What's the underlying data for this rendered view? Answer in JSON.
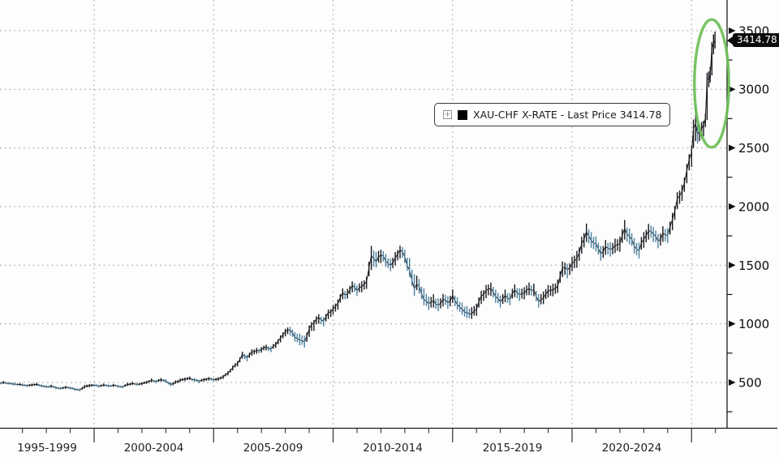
{
  "window": {
    "background": "#fdfdfd"
  },
  "legend": {
    "expand_icon": "plus-box-icon",
    "expand_glyph": "+",
    "swatch_color": "#000000",
    "label": "XAU-CHF X-RATE - Last Price 3414.78"
  },
  "last_price_callout": {
    "text": "3414.78",
    "bg": "#0c0c0c",
    "fg": "#ffffff"
  },
  "chart_data": {
    "type": "bar",
    "subtype": "ohlc-price-bars",
    "title": "XAU-CHF X-RATE - Last Price 3414.78",
    "series_name": "XAU-CHF X-RATE",
    "last_price": 3414.78,
    "xlabel": "",
    "ylabel": "",
    "grid": true,
    "legend_position": "floating-center-top",
    "ylim": [
      250,
      3600
    ],
    "x_range_years": [
      1996,
      2026.3
    ],
    "y_ticks": [
      500,
      1000,
      1500,
      2000,
      2500,
      3000,
      3500
    ],
    "y_minor_step": 250,
    "x_period_labels": [
      "1995-1999",
      "2000-2004",
      "2005-2009",
      "2010-2014",
      "2015-2019",
      "2020-2024"
    ],
    "x_divider_years": [
      2000,
      2005,
      2010,
      2015,
      2020,
      2025
    ],
    "colors": {
      "bar_up": "#17191e",
      "bar_down": "#4e81a0",
      "line": "#1a1d21",
      "grid": "#9a9a9a",
      "axis": "#1c1c1c",
      "tick_label": "#0d0d0d",
      "period_label": "#222222",
      "annotation": "#6cbf57"
    },
    "annotation_ellipse": {
      "center_year": 2025.84,
      "center_value": 3050,
      "radius_years": 0.72,
      "radius_value": 545,
      "stroke_width": 3.4
    },
    "bars": [
      [
        1996.0,
        482,
        506,
        495
      ],
      [
        1996.2,
        488,
        512,
        500
      ],
      [
        1996.4,
        480,
        504,
        492
      ],
      [
        1996.6,
        474,
        498,
        486
      ],
      [
        1996.8,
        470,
        494,
        482
      ],
      [
        1997.0,
        466,
        490,
        478
      ],
      [
        1997.2,
        460,
        484,
        472
      ],
      [
        1997.4,
        467,
        491,
        479
      ],
      [
        1997.6,
        472,
        496,
        484
      ],
      [
        1997.8,
        459,
        483,
        471
      ],
      [
        1998.0,
        452,
        476,
        464
      ],
      [
        1998.2,
        456,
        480,
        468
      ],
      [
        1998.4,
        443,
        467,
        455
      ],
      [
        1998.6,
        437,
        461,
        449
      ],
      [
        1998.8,
        446,
        470,
        458
      ],
      [
        1999.0,
        440,
        464,
        452
      ],
      [
        1999.2,
        429,
        453,
        441
      ],
      [
        1999.4,
        424,
        448,
        436
      ],
      [
        1999.6,
        448,
        478,
        463
      ],
      [
        1999.8,
        458,
        486,
        472
      ],
      [
        2000.0,
        464,
        488,
        476
      ],
      [
        2000.2,
        456,
        480,
        468
      ],
      [
        2000.4,
        467,
        491,
        479
      ],
      [
        2000.6,
        459,
        483,
        471
      ],
      [
        2000.8,
        463,
        487,
        475
      ],
      [
        2001.0,
        455,
        479,
        467
      ],
      [
        2001.2,
        450,
        474,
        462
      ],
      [
        2001.4,
        469,
        497,
        483
      ],
      [
        2001.6,
        478,
        506,
        492
      ],
      [
        2001.8,
        471,
        495,
        483
      ],
      [
        2002.0,
        477,
        501,
        489
      ],
      [
        2002.2,
        487,
        515,
        501
      ],
      [
        2002.4,
        503,
        533,
        519
      ],
      [
        2002.6,
        493,
        521,
        507
      ],
      [
        2002.8,
        507,
        537,
        523
      ],
      [
        2003.0,
        497,
        527,
        513
      ],
      [
        2003.2,
        468,
        500,
        484
      ],
      [
        2003.4,
        487,
        517,
        503
      ],
      [
        2003.6,
        503,
        533,
        519
      ],
      [
        2003.8,
        511,
        541,
        527
      ],
      [
        2004.0,
        521,
        551,
        537
      ],
      [
        2004.2,
        506,
        536,
        522
      ],
      [
        2004.4,
        493,
        523,
        509
      ],
      [
        2004.6,
        508,
        538,
        524
      ],
      [
        2004.8,
        516,
        546,
        532
      ],
      [
        2005.0,
        507,
        537,
        523
      ],
      [
        2005.2,
        514,
        544,
        530
      ],
      [
        2005.4,
        530,
        562,
        548
      ],
      [
        2005.6,
        560,
        596,
        580
      ],
      [
        2005.8,
        602,
        644,
        625
      ],
      [
        2006.0,
        636,
        682,
        662
      ],
      [
        2006.2,
        702,
        762,
        738
      ],
      [
        2006.4,
        680,
        736,
        712
      ],
      [
        2006.6,
        728,
        782,
        760
      ],
      [
        2006.8,
        744,
        794,
        772
      ],
      [
        2007.0,
        754,
        802,
        780
      ],
      [
        2007.2,
        772,
        822,
        802
      ],
      [
        2007.4,
        758,
        808,
        784
      ],
      [
        2007.6,
        794,
        846,
        824
      ],
      [
        2007.8,
        842,
        902,
        880
      ],
      [
        2008.0,
        892,
        958,
        934
      ],
      [
        2008.2,
        900,
        976,
        946
      ],
      [
        2008.4,
        848,
        930,
        886
      ],
      [
        2008.6,
        816,
        918,
        860
      ],
      [
        2008.8,
        798,
        898,
        844
      ],
      [
        2009.0,
        888,
        986,
        958
      ],
      [
        2009.2,
        940,
        1032,
        1006
      ],
      [
        2009.4,
        1000,
        1082,
        1052
      ],
      [
        2009.6,
        978,
        1056,
        1022
      ],
      [
        2009.8,
        1040,
        1122,
        1096
      ],
      [
        2010.0,
        1078,
        1162,
        1128
      ],
      [
        2010.2,
        1120,
        1206,
        1176
      ],
      [
        2010.4,
        1208,
        1302,
        1264
      ],
      [
        2010.6,
        1214,
        1298,
        1252
      ],
      [
        2010.8,
        1268,
        1362,
        1326
      ],
      [
        2011.0,
        1238,
        1330,
        1282
      ],
      [
        2011.2,
        1268,
        1362,
        1318
      ],
      [
        2011.4,
        1298,
        1402,
        1360
      ],
      [
        2011.6,
        1458,
        1665,
        1580
      ],
      [
        2011.8,
        1478,
        1612,
        1528
      ],
      [
        2012.0,
        1518,
        1632,
        1586
      ],
      [
        2012.2,
        1488,
        1596,
        1536
      ],
      [
        2012.4,
        1448,
        1556,
        1500
      ],
      [
        2012.6,
        1498,
        1612,
        1562
      ],
      [
        2012.8,
        1558,
        1666,
        1630
      ],
      [
        2013.0,
        1518,
        1632,
        1572
      ],
      [
        2013.2,
        1398,
        1562,
        1456
      ],
      [
        2013.4,
        1238,
        1422,
        1298
      ],
      [
        2013.6,
        1258,
        1382,
        1322
      ],
      [
        2013.8,
        1158,
        1302,
        1206
      ],
      [
        2014.0,
        1118,
        1232,
        1172
      ],
      [
        2014.2,
        1138,
        1252,
        1198
      ],
      [
        2014.4,
        1108,
        1216,
        1158
      ],
      [
        2014.6,
        1148,
        1256,
        1206
      ],
      [
        2014.8,
        1128,
        1236,
        1178
      ],
      [
        2015.0,
        1178,
        1292,
        1242
      ],
      [
        2015.2,
        1118,
        1226,
        1166
      ],
      [
        2015.4,
        1078,
        1182,
        1126
      ],
      [
        2015.6,
        1048,
        1152,
        1096
      ],
      [
        2015.8,
        1042,
        1142,
        1086
      ],
      [
        2016.0,
        1068,
        1172,
        1122
      ],
      [
        2016.2,
        1168,
        1282,
        1238
      ],
      [
        2016.4,
        1218,
        1332,
        1286
      ],
      [
        2016.6,
        1238,
        1352,
        1302
      ],
      [
        2016.8,
        1178,
        1292,
        1232
      ],
      [
        2017.0,
        1138,
        1242,
        1188
      ],
      [
        2017.2,
        1184,
        1292,
        1242
      ],
      [
        2017.4,
        1158,
        1262,
        1208
      ],
      [
        2017.6,
        1228,
        1336,
        1288
      ],
      [
        2017.8,
        1194,
        1302,
        1248
      ],
      [
        2018.0,
        1208,
        1312,
        1262
      ],
      [
        2018.2,
        1244,
        1352,
        1300
      ],
      [
        2018.4,
        1234,
        1342,
        1288
      ],
      [
        2018.6,
        1138,
        1252,
        1188
      ],
      [
        2018.8,
        1168,
        1276,
        1222
      ],
      [
        2019.0,
        1224,
        1332,
        1280
      ],
      [
        2019.2,
        1234,
        1342,
        1290
      ],
      [
        2019.4,
        1264,
        1378,
        1322
      ],
      [
        2019.6,
        1398,
        1532,
        1478
      ],
      [
        2019.8,
        1388,
        1512,
        1462
      ],
      [
        2020.0,
        1448,
        1572,
        1515
      ],
      [
        2020.2,
        1478,
        1622,
        1558
      ],
      [
        2020.4,
        1598,
        1742,
        1682
      ],
      [
        2020.6,
        1698,
        1855,
        1785
      ],
      [
        2020.8,
        1648,
        1782,
        1712
      ],
      [
        2021.0,
        1618,
        1746,
        1682
      ],
      [
        2021.2,
        1538,
        1662,
        1598
      ],
      [
        2021.4,
        1588,
        1716,
        1658
      ],
      [
        2021.6,
        1574,
        1696,
        1635
      ],
      [
        2021.8,
        1604,
        1726,
        1668
      ],
      [
        2022.0,
        1614,
        1742,
        1682
      ],
      [
        2022.2,
        1718,
        1886,
        1812
      ],
      [
        2022.4,
        1678,
        1812,
        1748
      ],
      [
        2022.6,
        1598,
        1732,
        1665
      ],
      [
        2022.8,
        1558,
        1692,
        1622
      ],
      [
        2023.0,
        1648,
        1782,
        1722
      ],
      [
        2023.2,
        1718,
        1852,
        1792
      ],
      [
        2023.4,
        1698,
        1826,
        1765
      ],
      [
        2023.6,
        1644,
        1766,
        1705
      ],
      [
        2023.8,
        1698,
        1832,
        1772
      ],
      [
        2024.0,
        1688,
        1816,
        1755
      ],
      [
        2024.2,
        1798,
        1946,
        1892
      ],
      [
        2024.4,
        1978,
        2122,
        2068
      ],
      [
        2024.6,
        2048,
        2186,
        2128
      ],
      [
        2024.8,
        2198,
        2362,
        2308
      ],
      [
        2025.0,
        2338,
        2522,
        2462
      ],
      [
        2025.08,
        2498,
        2742,
        2668
      ],
      [
        2025.17,
        2558,
        2863,
        2705
      ],
      [
        2025.25,
        2538,
        2722,
        2615
      ],
      [
        2025.33,
        2558,
        2702,
        2648
      ],
      [
        2025.42,
        2578,
        2722,
        2662
      ],
      [
        2025.5,
        2598,
        2732,
        2695
      ],
      [
        2025.58,
        2678,
        2792,
        2752
      ],
      [
        2025.65,
        2738,
        3142,
        3085
      ],
      [
        2025.72,
        3018,
        3152,
        3092
      ],
      [
        2025.78,
        3058,
        3192,
        3118
      ],
      [
        2025.85,
        3118,
        3402,
        3355
      ],
      [
        2025.92,
        3298,
        3468,
        3388
      ],
      [
        2025.98,
        3348,
        3492,
        3415
      ]
    ]
  }
}
